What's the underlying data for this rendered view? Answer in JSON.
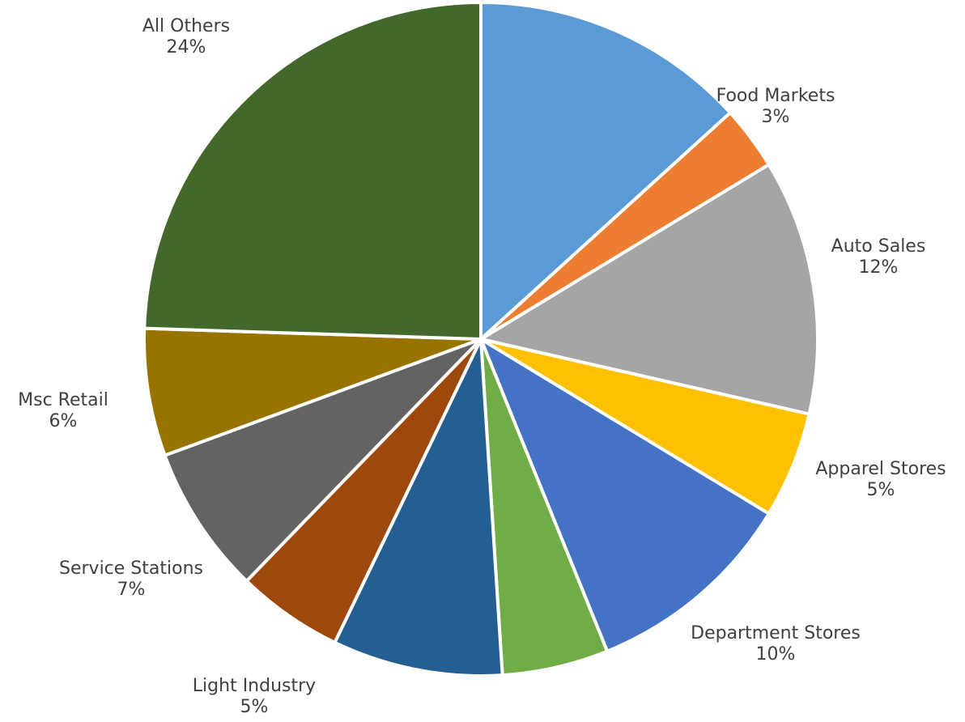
{
  "chart_data": {
    "type": "pie",
    "categories": [
      null,
      "Food Markets",
      "Auto Sales",
      "Apparel Stores",
      "Department Stores",
      null,
      null,
      "Light Industry",
      "Service Stations",
      "Msc Retail",
      "All Others"
    ],
    "values": [
      13,
      3,
      12,
      5,
      10,
      5,
      8,
      5,
      7,
      6,
      24
    ],
    "value_labels": [
      null,
      "3%",
      "12%",
      "5%",
      "10%",
      null,
      null,
      "5%",
      "7%",
      "6%",
      "24%"
    ],
    "colors": [
      "#5b9bd5",
      "#ed7d31",
      "#a5a5a5",
      "#ffc000",
      "#4472c4",
      "#70ad47",
      "#255e91",
      "#9e480e",
      "#636363",
      "#997300",
      "#43682b"
    ]
  }
}
